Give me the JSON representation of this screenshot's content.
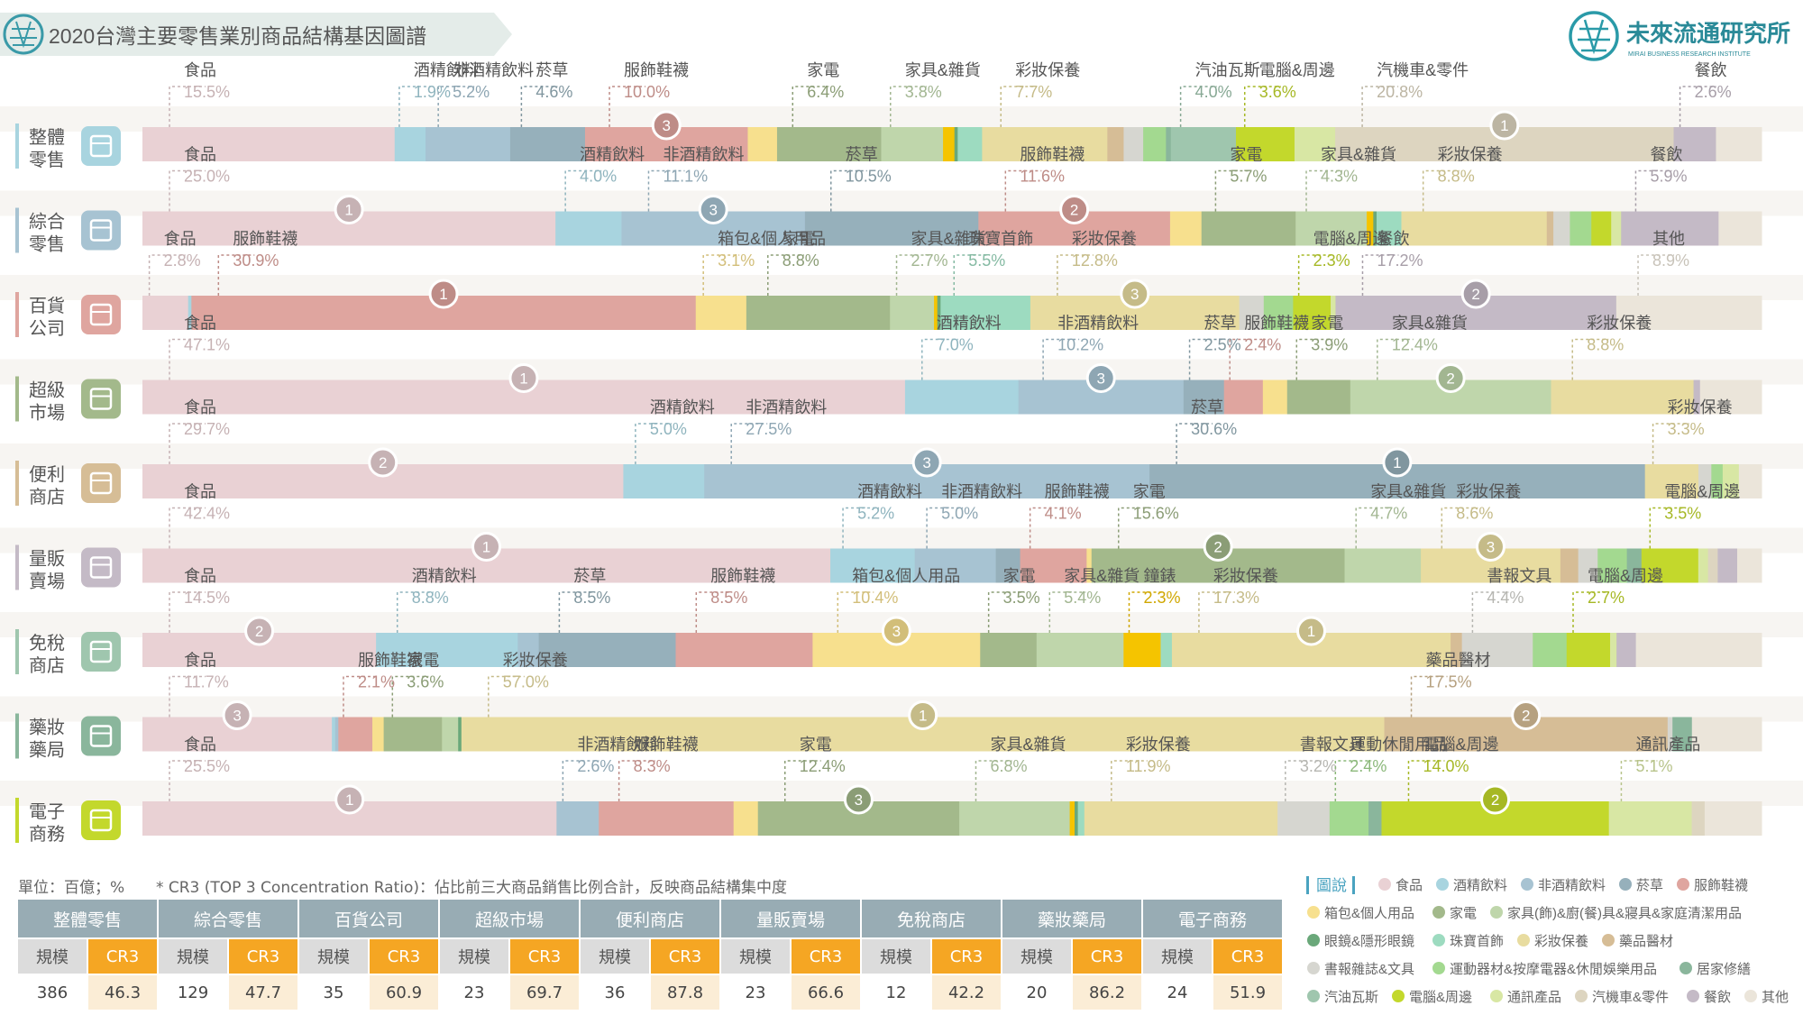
{
  "header": {
    "title": "2020台灣主要零售業別商品結構基因圖譜",
    "logo_text": "未來流通研究所",
    "logo_sub": "MIRAI BUSINESS RESEARCH INSTITUTE"
  },
  "unit_note": "單位：百億；%",
  "cr3_note": "* CR3 (TOP 3 Concentration Ratio)：佔比前三大商品銷售比例合計，反映商品結構集中度",
  "legend_title": "圖說",
  "categories": [
    {
      "name": "食品",
      "color": "#e9d1d4"
    },
    {
      "name": "酒精飲料",
      "color": "#a8d4df"
    },
    {
      "name": "非酒精飲料",
      "color": "#a7c3d2"
    },
    {
      "name": "菸草",
      "color": "#96b0bb"
    },
    {
      "name": "服飾鞋襪",
      "color": "#dfa59f"
    },
    {
      "name": "箱包&個人用品",
      "color": "#f7e08e"
    },
    {
      "name": "家電",
      "color": "#a3b98b"
    },
    {
      "name": "家具(飾)&廚(餐)具&寢具&家庭清潔用品",
      "color": "#bfd6ab"
    },
    {
      "name": "鐘錶&配件",
      "color": "#f5c400"
    },
    {
      "name": "眼鏡&隱形眼鏡",
      "color": "#6aa87a"
    },
    {
      "name": "珠寶首飾",
      "color": "#9ddbc0"
    },
    {
      "name": "彩妝保養",
      "color": "#e8dca0"
    },
    {
      "name": "藥品醫材",
      "color": "#d6bd96"
    },
    {
      "name": "書報雜誌&文具",
      "color": "#d6d6d0"
    },
    {
      "name": "運動器材&按摩電器&休閒娛樂用品",
      "color": "#a3d990"
    },
    {
      "name": "居家修繕",
      "color": "#8ab69c"
    },
    {
      "name": "汽油瓦斯",
      "color": "#9fc6ae"
    },
    {
      "name": "電腦&周邊",
      "color": "#c3d82c"
    },
    {
      "name": "通訊產品",
      "color": "#d8e7a4"
    },
    {
      "name": "汽機車&零件",
      "color": "#ddd5c0"
    },
    {
      "name": "餐飲",
      "color": "#c4bac6"
    },
    {
      "name": "其他",
      "color": "#ebe5da"
    }
  ],
  "chart_data": {
    "type": "bar",
    "title": "2020台灣主要零售業別商品結構基因圖譜",
    "orientation": "horizontal-stacked-100",
    "series": [
      {
        "name": "整體零售",
        "segments": [
          [
            "食品",
            15.5
          ],
          [
            "酒精飲料",
            1.9
          ],
          [
            "非酒精飲料",
            5.2
          ],
          [
            "菸草",
            4.6
          ],
          [
            "服飾鞋襪",
            10.0
          ],
          [
            "箱包&個人用品",
            1.8
          ],
          [
            "家電",
            6.4
          ],
          [
            "家具(飾)&廚(餐)具&寢具&家庭清潔用品",
            3.8
          ],
          [
            "鐘錶&配件",
            0.7
          ],
          [
            "眼鏡&隱形眼鏡",
            0.2
          ],
          [
            "珠寶首飾",
            1.5
          ],
          [
            "彩妝保養",
            7.7
          ],
          [
            "藥品醫材",
            1.0
          ],
          [
            "書報雜誌&文具",
            1.2
          ],
          [
            "運動器材&按摩電器&休閒娛樂用品",
            1.4
          ],
          [
            "居家修繕",
            0.3
          ],
          [
            "汽油瓦斯",
            4.0
          ],
          [
            "電腦&周邊",
            3.6
          ],
          [
            "通訊產品",
            2.5
          ],
          [
            "汽機車&零件",
            20.8
          ],
          [
            "餐飲",
            2.6
          ],
          [
            "其他",
            2.8
          ]
        ],
        "labels": [
          {
            "c": "食品",
            "v": "15.5%"
          },
          {
            "c": "酒精飲料",
            "v": "1.9%"
          },
          {
            "c": "非酒精飲料",
            "v": "5.2%"
          },
          {
            "c": "菸草",
            "v": "4.6%"
          },
          {
            "c": "服飾鞋襪",
            "v": "10.0%",
            "rank": "3"
          },
          {
            "c": "家電",
            "v": "6.4%"
          },
          {
            "c": "家具&雜貨",
            "v": "3.8%"
          },
          {
            "c": "彩妝保養",
            "v": "7.7%"
          },
          {
            "c": "汽油瓦斯",
            "v": "4.0%"
          },
          {
            "c": "電腦&周邊",
            "v": "3.6%"
          },
          {
            "c": "汽機車&零件",
            "v": "20.8%",
            "rank": "1"
          },
          {
            "c": "餐飲",
            "v": "2.6%"
          }
        ]
      },
      {
        "name": "綜合零售",
        "segments": [
          [
            "食品",
            25.0
          ],
          [
            "酒精飲料",
            4.0
          ],
          [
            "非酒精飲料",
            11.1
          ],
          [
            "菸草",
            10.5
          ],
          [
            "服飾鞋襪",
            11.6
          ],
          [
            "箱包&個人用品",
            1.9
          ],
          [
            "家電",
            5.7
          ],
          [
            "家具(飾)&廚(餐)具&寢具&家庭清潔用品",
            4.3
          ],
          [
            "鐘錶&配件",
            0.4
          ],
          [
            "眼鏡&隱形眼鏡",
            0.2
          ],
          [
            "珠寶首飾",
            1.5
          ],
          [
            "彩妝保養",
            8.8
          ],
          [
            "藥品醫材",
            0.4
          ],
          [
            "書報雜誌&文具",
            1.0
          ],
          [
            "運動器材&按摩電器&休閒娛樂用品",
            1.3
          ],
          [
            "電腦&周邊",
            1.2
          ],
          [
            "通訊產品",
            0.6
          ],
          [
            "餐飲",
            5.9
          ],
          [
            "其他",
            2.6
          ]
        ],
        "labels": [
          {
            "c": "食品",
            "v": "25.0%",
            "rank": "1"
          },
          {
            "c": "酒精飲料",
            "v": "4.0%"
          },
          {
            "c": "非酒精飲料",
            "v": "11.1%",
            "rank": "3"
          },
          {
            "c": "菸草",
            "v": "10.5%"
          },
          {
            "c": "服飾鞋襪",
            "v": "11.6%",
            "rank": "2"
          },
          {
            "c": "家電",
            "v": "5.7%"
          },
          {
            "c": "家具&雜貨",
            "v": "4.3%"
          },
          {
            "c": "彩妝保養",
            "v": "8.8%"
          },
          {
            "c": "餐飲",
            "v": "5.9%"
          }
        ]
      },
      {
        "name": "百貨公司",
        "segments": [
          [
            "食品",
            2.8
          ],
          [
            "酒精飲料",
            0.2
          ],
          [
            "服飾鞋襪",
            30.9
          ],
          [
            "箱包&個人用品",
            3.1
          ],
          [
            "家電",
            8.8
          ],
          [
            "家具(飾)&廚(餐)具&寢具&家庭清潔用品",
            2.7
          ],
          [
            "鐘錶&配件",
            0.2
          ],
          [
            "眼鏡&隱形眼鏡",
            0.2
          ],
          [
            "珠寶首飾",
            5.5
          ],
          [
            "彩妝保養",
            12.8
          ],
          [
            "書報雜誌&文具",
            1.5
          ],
          [
            "運動器材&按摩電器&休閒娛樂用品",
            1.8
          ],
          [
            "電腦&周邊",
            2.3
          ],
          [
            "通訊產品",
            0.3
          ],
          [
            "餐飲",
            17.2
          ],
          [
            "其他",
            8.9
          ]
        ],
        "labels": [
          {
            "c": "食品",
            "v": "2.8%"
          },
          {
            "c": "服飾鞋襪",
            "v": "30.9%",
            "rank": "1"
          },
          {
            "c": "箱包&個人用品",
            "v": "3.1%"
          },
          {
            "c": "家電",
            "v": "8.8%"
          },
          {
            "c": "家具&雜貨",
            "v": "2.7%"
          },
          {
            "c": "珠寶首飾",
            "v": "5.5%"
          },
          {
            "c": "彩妝保養",
            "v": "12.8%",
            "rank": "3"
          },
          {
            "c": "電腦&周邊",
            "v": "2.3%"
          },
          {
            "c": "餐飲",
            "v": "17.2%",
            "rank": "2"
          },
          {
            "c": "其他",
            "v": "8.9%"
          }
        ]
      },
      {
        "name": "超級市場",
        "segments": [
          [
            "食品",
            47.1
          ],
          [
            "酒精飲料",
            7.0
          ],
          [
            "非酒精飲料",
            10.2
          ],
          [
            "菸草",
            2.5
          ],
          [
            "服飾鞋襪",
            2.4
          ],
          [
            "箱包&個人用品",
            1.5
          ],
          [
            "家電",
            3.9
          ],
          [
            "家具(飾)&廚(餐)具&寢具&家庭清潔用品",
            12.4
          ],
          [
            "彩妝保養",
            8.8
          ],
          [
            "餐飲",
            0.4
          ],
          [
            "其他",
            3.8
          ]
        ],
        "labels": [
          {
            "c": "食品",
            "v": "47.1%",
            "rank": "1"
          },
          {
            "c": "酒精飲料",
            "v": "7.0%"
          },
          {
            "c": "非酒精飲料",
            "v": "10.2%",
            "rank": "3"
          },
          {
            "c": "菸草",
            "v": "2.5%"
          },
          {
            "c": "服飾鞋襪",
            "v": "2.4%"
          },
          {
            "c": "家電",
            "v": "3.9%"
          },
          {
            "c": "家具&雜貨",
            "v": "12.4%",
            "rank": "2"
          },
          {
            "c": "彩妝保養",
            "v": "8.8%"
          }
        ]
      },
      {
        "name": "便利商店",
        "segments": [
          [
            "食品",
            29.7
          ],
          [
            "酒精飲料",
            5.0
          ],
          [
            "非酒精飲料",
            27.5
          ],
          [
            "菸草",
            30.6
          ],
          [
            "彩妝保養",
            3.3
          ],
          [
            "書報雜誌&文具",
            0.8
          ],
          [
            "運動器材&按摩電器&休閒娛樂用品",
            0.7
          ],
          [
            "通訊產品",
            1.0
          ],
          [
            "其他",
            1.4
          ]
        ],
        "labels": [
          {
            "c": "食品",
            "v": "29.7%",
            "rank": "2"
          },
          {
            "c": "酒精飲料",
            "v": "5.0%"
          },
          {
            "c": "非酒精飲料",
            "v": "27.5%",
            "rank": "3"
          },
          {
            "c": "菸草",
            "v": "30.6%",
            "rank": "1"
          },
          {
            "c": "彩妝保養",
            "v": "3.3%"
          }
        ]
      },
      {
        "name": "量販賣場",
        "segments": [
          [
            "食品",
            42.4
          ],
          [
            "酒精飲料",
            5.2
          ],
          [
            "非酒精飲料",
            5.0
          ],
          [
            "菸草",
            1.5
          ],
          [
            "服飾鞋襪",
            4.1
          ],
          [
            "箱包&個人用品",
            0.3
          ],
          [
            "家電",
            15.6
          ],
          [
            "家具(飾)&廚(餐)具&寢具&家庭清潔用品",
            4.7
          ],
          [
            "彩妝保養",
            8.6
          ],
          [
            "藥品醫材",
            1.1
          ],
          [
            "書報雜誌&文具",
            1.2
          ],
          [
            "運動器材&按摩電器&休閒娛樂用品",
            1.8
          ],
          [
            "居家修繕",
            0.9
          ],
          [
            "電腦&周邊",
            3.5
          ],
          [
            "通訊產品",
            0.6
          ],
          [
            "汽機車&零件",
            0.6
          ],
          [
            "餐飲",
            1.2
          ],
          [
            "其他",
            1.5
          ]
        ],
        "labels": [
          {
            "c": "食品",
            "v": "42.4%",
            "rank": "1"
          },
          {
            "c": "酒精飲料",
            "v": "5.2%"
          },
          {
            "c": "非酒精飲料",
            "v": "5.0%"
          },
          {
            "c": "服飾鞋襪",
            "v": "4.1%"
          },
          {
            "c": "家電",
            "v": "15.6%",
            "rank": "2"
          },
          {
            "c": "家具&雜貨",
            "v": "4.7%"
          },
          {
            "c": "彩妝保養",
            "v": "8.6%",
            "rank": "3"
          },
          {
            "c": "電腦&周邊",
            "v": "3.5%"
          }
        ]
      },
      {
        "name": "免稅商店",
        "segments": [
          [
            "食品",
            14.5
          ],
          [
            "酒精飲料",
            8.8
          ],
          [
            "非酒精飲料",
            1.3
          ],
          [
            "菸草",
            8.5
          ],
          [
            "服飾鞋襪",
            8.5
          ],
          [
            "箱包&個人用品",
            10.4
          ],
          [
            "家電",
            3.5
          ],
          [
            "家具(飾)&廚(餐)具&寢具&家庭清潔用品",
            5.4
          ],
          [
            "鐘錶&配件",
            2.3
          ],
          [
            "珠寶首飾",
            0.7
          ],
          [
            "彩妝保養",
            17.3
          ],
          [
            "藥品醫材",
            0.7
          ],
          [
            "書報雜誌&文具",
            4.4
          ],
          [
            "運動器材&按摩電器&休閒娛樂用品",
            2.1
          ],
          [
            "電腦&周邊",
            2.7
          ],
          [
            "通訊產品",
            0.4
          ],
          [
            "餐飲",
            1.2
          ],
          [
            "其他",
            7.8
          ]
        ],
        "labels": [
          {
            "c": "食品",
            "v": "14.5%",
            "rank": "2"
          },
          {
            "c": "酒精飲料",
            "v": "8.8%"
          },
          {
            "c": "菸草",
            "v": "8.5%"
          },
          {
            "c": "服飾鞋襪",
            "v": "8.5%"
          },
          {
            "c": "箱包&個人用品",
            "v": "10.4%",
            "rank": "3"
          },
          {
            "c": "家電",
            "v": "3.5%"
          },
          {
            "c": "家具&雜貨",
            "v": "5.4%"
          },
          {
            "c": "鐘錶",
            "v": "2.3%"
          },
          {
            "c": "彩妝保養",
            "v": "17.3%",
            "rank": "1"
          },
          {
            "c": "書報文具",
            "v": "4.4%"
          },
          {
            "c": "電腦&周邊",
            "v": "2.7%"
          }
        ]
      },
      {
        "name": "藥妝藥局",
        "segments": [
          [
            "食品",
            11.7
          ],
          [
            "酒精飲料",
            0.2
          ],
          [
            "非酒精飲料",
            0.2
          ],
          [
            "服飾鞋襪",
            2.1
          ],
          [
            "箱包&個人用品",
            0.7
          ],
          [
            "家電",
            3.6
          ],
          [
            "家具(飾)&廚(餐)具&寢具&家庭清潔用品",
            1.0
          ],
          [
            "眼鏡&隱形眼鏡",
            0.2
          ],
          [
            "彩妝保養",
            57.0
          ],
          [
            "藥品醫材",
            17.5
          ],
          [
            "書報雜誌&文具",
            0.3
          ],
          [
            "居家修繕",
            1.2
          ],
          [
            "其他",
            4.3
          ]
        ],
        "labels": [
          {
            "c": "食品",
            "v": "11.7%",
            "rank": "3"
          },
          {
            "c": "服飾鞋襪",
            "v": "2.1%"
          },
          {
            "c": "家電",
            "v": "3.6%"
          },
          {
            "c": "彩妝保養",
            "v": "57.0%",
            "rank": "1"
          },
          {
            "c": "藥品醫材",
            "v": "17.5%",
            "rank": "2"
          }
        ]
      },
      {
        "name": "電子商務",
        "segments": [
          [
            "食品",
            25.5
          ],
          [
            "非酒精飲料",
            2.6
          ],
          [
            "服飾鞋襪",
            8.3
          ],
          [
            "箱包&個人用品",
            1.5
          ],
          [
            "家電",
            12.4
          ],
          [
            "家具(飾)&廚(餐)具&寢具&家庭清潔用品",
            6.8
          ],
          [
            "鐘錶&配件",
            0.3
          ],
          [
            "眼鏡&隱形眼鏡",
            0.2
          ],
          [
            "珠寶首飾",
            0.4
          ],
          [
            "彩妝保養",
            11.9
          ],
          [
            "書報雜誌&文具",
            3.2
          ],
          [
            "運動器材&按摩電器&休閒娛樂用品",
            2.4
          ],
          [
            "居家修繕",
            0.8
          ],
          [
            "電腦&周邊",
            14.0
          ],
          [
            "通訊產品",
            5.1
          ],
          [
            "汽機車&零件",
            0.8
          ],
          [
            "其他",
            3.5
          ]
        ],
        "labels": [
          {
            "c": "食品",
            "v": "25.5%",
            "rank": "1"
          },
          {
            "c": "非酒精飲料",
            "v": "2.6%"
          },
          {
            "c": "服飾鞋襪",
            "v": "8.3%"
          },
          {
            "c": "家電",
            "v": "12.4%",
            "rank": "3"
          },
          {
            "c": "家具&雜貨",
            "v": "6.8%"
          },
          {
            "c": "彩妝保養",
            "v": "11.9%"
          },
          {
            "c": "書報文具",
            "v": "3.2%"
          },
          {
            "c": "運動休閒用品",
            "v": "2.4%"
          },
          {
            "c": "電腦&周邊",
            "v": "14.0%",
            "rank": "2"
          },
          {
            "c": "通訊產品",
            "v": "5.1%"
          }
        ]
      }
    ]
  },
  "table": {
    "headers": [
      "整體零售",
      "綜合零售",
      "百貨公司",
      "超級市場",
      "便利商店",
      "量販賣場",
      "免稅商店",
      "藥妝藥局",
      "電子商務"
    ],
    "scale_label": "規模",
    "cr3_label": "CR3",
    "scale": [
      "386",
      "129",
      "35",
      "23",
      "36",
      "23",
      "12",
      "20",
      "24"
    ],
    "cr3": [
      "46.3",
      "47.7",
      "60.9",
      "69.7",
      "87.8",
      "66.6",
      "42.2",
      "86.2",
      "51.9"
    ]
  }
}
